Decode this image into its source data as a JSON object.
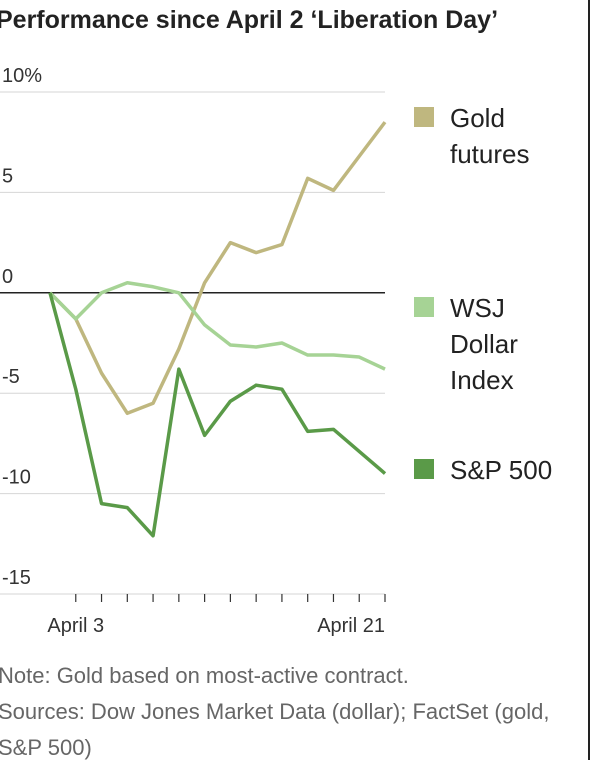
{
  "chart_data": {
    "type": "line",
    "title": "Performance since April 2 ‘Liberation Day’",
    "categories": [
      null,
      "April 3",
      null,
      null,
      null,
      null,
      null,
      null,
      null,
      null,
      null,
      null,
      null,
      "April 21"
    ],
    "series": [
      {
        "name": "Gold futures",
        "color": "#bfb77f",
        "values": [
          0,
          -1.3,
          -4.0,
          -6.0,
          -5.5,
          -2.8,
          0.5,
          2.5,
          2.0,
          2.4,
          5.7,
          5.1,
          6.8,
          8.5
        ]
      },
      {
        "name": "WSJ Dollar Index",
        "color": "#a6d395",
        "values": [
          0,
          -1.3,
          0,
          0.5,
          0.3,
          0,
          -1.6,
          -2.6,
          -2.7,
          -2.5,
          -3.1,
          -3.1,
          -3.2,
          -3.8
        ]
      },
      {
        "name": "S&P 500",
        "color": "#5a9a48",
        "values": [
          0,
          -4.8,
          -10.5,
          -10.7,
          -12.1,
          -3.8,
          -7.1,
          -5.4,
          -4.6,
          -4.8,
          -6.9,
          -6.8,
          -7.9,
          -9.0
        ]
      }
    ],
    "ylim": [
      -15,
      10
    ],
    "yticks": [
      {
        "value": 10,
        "label": "10%"
      },
      5,
      0,
      -5,
      -10,
      -15
    ],
    "grid": true,
    "notes": [
      "Note: Gold based on most-active contract.",
      "Sources: Dow Jones Market Data (dollar); FactSet (gold, S&P 500)"
    ]
  }
}
